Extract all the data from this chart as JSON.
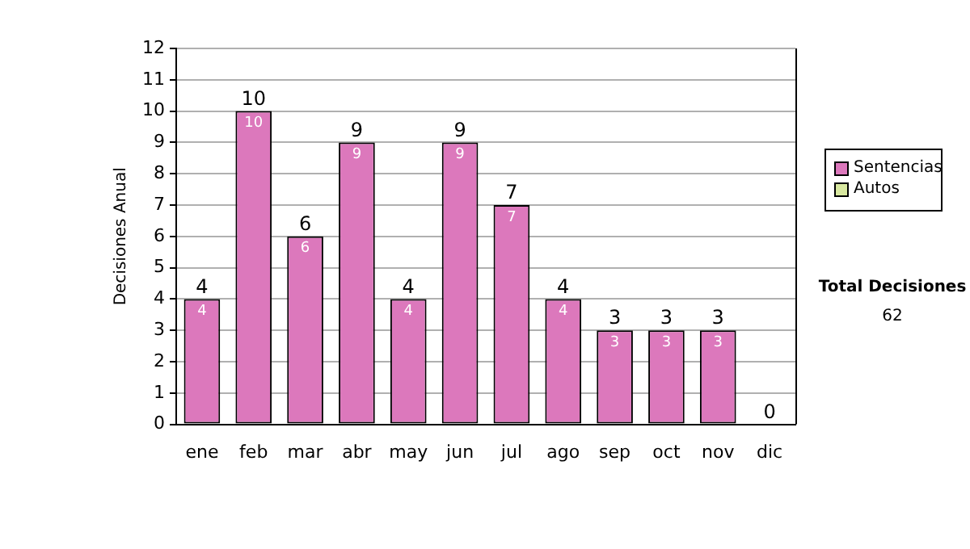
{
  "chart_data": {
    "type": "bar",
    "stacked": true,
    "ylabel": "Decisiones Anual",
    "categories": [
      "ene",
      "feb",
      "mar",
      "abr",
      "may",
      "jun",
      "jul",
      "ago",
      "sep",
      "oct",
      "nov",
      "dic"
    ],
    "series": [
      {
        "name": "Sentencias",
        "color": "#dc78bc",
        "values": [
          4,
          10,
          6,
          9,
          4,
          9,
          7,
          4,
          3,
          3,
          3,
          0
        ],
        "value_labels": [
          "4",
          "10",
          "6",
          "9",
          "4",
          "9",
          "7",
          "4",
          "3",
          "3",
          "3",
          null
        ]
      },
      {
        "name": "Autos",
        "color": "#d8e8a0",
        "values": [
          0,
          0,
          0,
          0,
          0,
          0,
          0,
          0,
          0,
          0,
          0,
          0
        ]
      }
    ],
    "totals": [
      "4",
      "10",
      "6",
      "9",
      "4",
      "9",
      "7",
      "4",
      "3",
      "3",
      "3",
      "0"
    ],
    "ylim": [
      0,
      12
    ],
    "yticks": [
      0,
      1,
      2,
      3,
      4,
      5,
      6,
      7,
      8,
      9,
      10,
      11,
      12
    ],
    "grid": "y",
    "legend": "right",
    "annotations": [
      "Total Decisiones",
      "62"
    ]
  }
}
